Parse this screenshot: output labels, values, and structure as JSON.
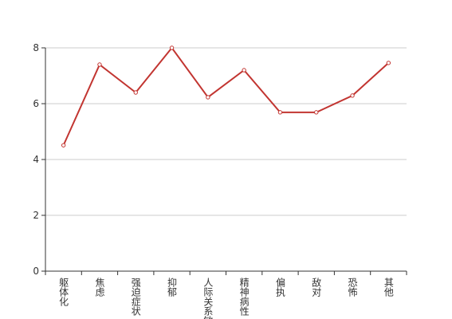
{
  "chart_data": {
    "type": "line",
    "categories": [
      "躯体化",
      "焦虑",
      "强迫症状",
      "抑郁",
      "人际关系敏感",
      "精神病性",
      "偏执",
      "敌对",
      "恐怖",
      "其他"
    ],
    "series": [
      {
        "name": "",
        "color": "#c23531",
        "values": [
          4.51,
          7.4,
          6.4,
          8.0,
          6.23,
          7.2,
          5.69,
          5.69,
          6.29,
          7.46
        ]
      }
    ],
    "ylim": [
      0,
      8
    ],
    "yticks": [
      0,
      2,
      4,
      6,
      8
    ],
    "grid": true
  }
}
